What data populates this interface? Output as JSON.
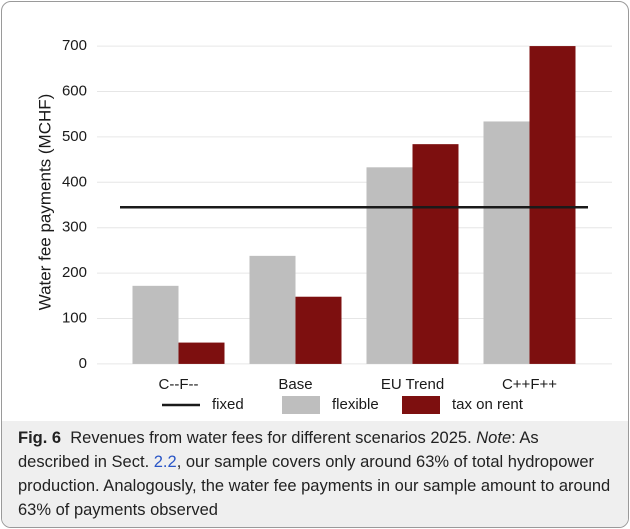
{
  "chart_data": {
    "type": "bar",
    "y_label": "Water fee payments (MCHF)",
    "categories": [
      "C--F--",
      "Base",
      "EU Trend",
      "C++F++"
    ],
    "series": [
      {
        "name": "fixed",
        "type": "line",
        "color": "#1a1a1a",
        "values": [
          345,
          345,
          345,
          345
        ]
      },
      {
        "name": "flexible",
        "type": "bar",
        "color": "#bebebe",
        "values": [
          172,
          238,
          433,
          534
        ]
      },
      {
        "name": "tax on rent",
        "type": "bar",
        "color": "#7d0f0f",
        "values": [
          47,
          148,
          484,
          700
        ]
      }
    ],
    "ylim": [
      -20,
      720
    ],
    "yticks": [
      0,
      100,
      200,
      300,
      400,
      500,
      600,
      700
    ],
    "grid": true,
    "legend": "bottom"
  },
  "caption": {
    "label": "Fig. 6",
    "text": "Revenues from water fees for different scenarios 2025.",
    "note_label": "Note",
    "note_text": ": As described in Sect.",
    "ref": "2.2",
    "rest": ", our sample covers only around 63% of total hydropower production. Analogously, the water fee payments in our sample amount to around 63% of payments observed"
  }
}
